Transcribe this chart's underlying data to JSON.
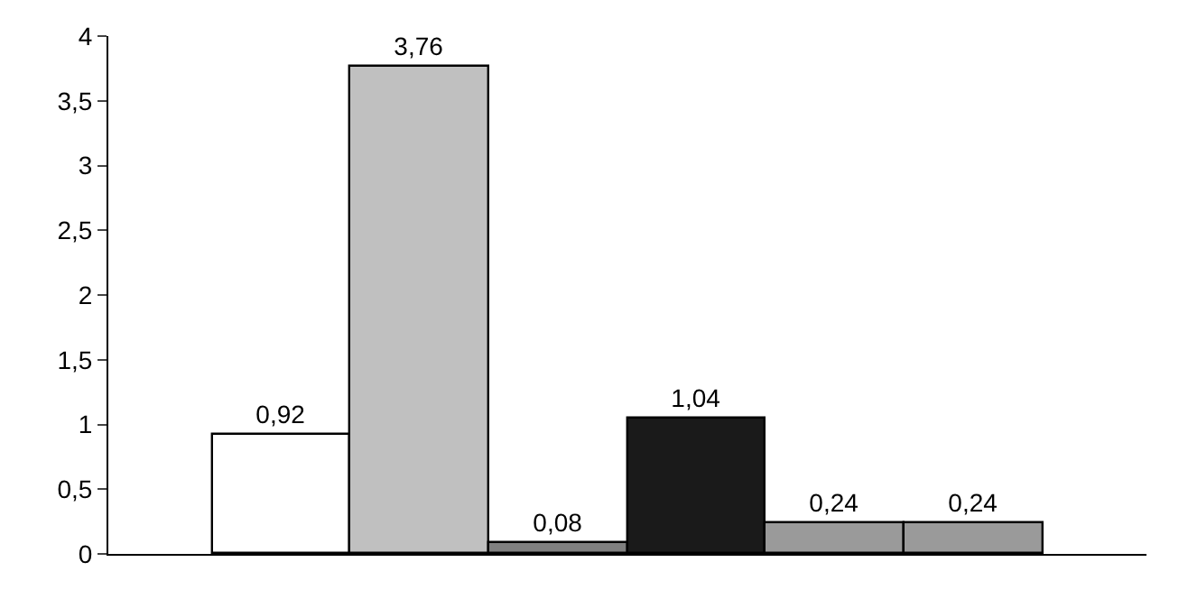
{
  "chart_data": {
    "type": "bar",
    "categories": [
      null,
      null,
      null,
      null,
      null,
      null
    ],
    "values": [
      0.92,
      3.76,
      0.08,
      1.04,
      0.24,
      0.24
    ],
    "colors": [
      "#ffffff",
      "#c0c0c0",
      "#808080",
      "#1a1a1a",
      "#9a9a9a",
      "#9a9a9a"
    ],
    "value_labels": [
      "0,92",
      "3,76",
      "0,08",
      "1,04",
      "0,24",
      "0,24"
    ],
    "ylim": [
      0,
      4
    ],
    "yticks": [
      0,
      {
        "value": 0.5,
        "label": "0,5"
      },
      1,
      {
        "value": 1.5,
        "label": "1,5"
      },
      2,
      {
        "value": 2.5,
        "label": "2,5"
      },
      3,
      {
        "value": 3.5,
        "label": "3,5"
      },
      4
    ],
    "legend": false,
    "tick_labels": "y"
  }
}
